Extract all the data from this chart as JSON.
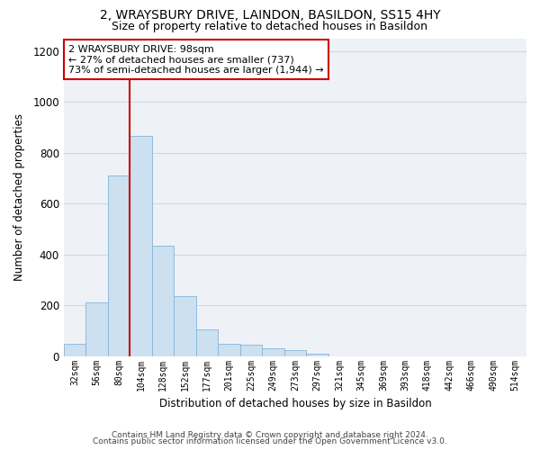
{
  "title": "2, WRAYSBURY DRIVE, LAINDON, BASILDON, SS15 4HY",
  "subtitle": "Size of property relative to detached houses in Basildon",
  "xlabel": "Distribution of detached houses by size in Basildon",
  "ylabel": "Number of detached properties",
  "bar_labels": [
    "32sqm",
    "56sqm",
    "80sqm",
    "104sqm",
    "128sqm",
    "152sqm",
    "177sqm",
    "201sqm",
    "225sqm",
    "249sqm",
    "273sqm",
    "297sqm",
    "321sqm",
    "345sqm",
    "369sqm",
    "393sqm",
    "418sqm",
    "442sqm",
    "466sqm",
    "490sqm",
    "514sqm"
  ],
  "bar_values": [
    50,
    210,
    710,
    865,
    435,
    235,
    105,
    50,
    43,
    30,
    22,
    10,
    0,
    0,
    0,
    0,
    0,
    0,
    0,
    0,
    0
  ],
  "bar_color": "#cce0f0",
  "bar_edge_color": "#85b5d9",
  "grid_color": "#d0d8e0",
  "background_color": "#eef2f7",
  "vline_x": 2.5,
  "vline_color": "#cc0000",
  "annotation_text": "2 WRAYSBURY DRIVE: 98sqm\n← 27% of detached houses are smaller (737)\n73% of semi-detached houses are larger (1,944) →",
  "annotation_box_color": "#ffffff",
  "annotation_box_edge": "#cc0000",
  "ylim": [
    0,
    1250
  ],
  "yticks": [
    0,
    200,
    400,
    600,
    800,
    1000,
    1200
  ],
  "footer1": "Contains HM Land Registry data © Crown copyright and database right 2024.",
  "footer2": "Contains public sector information licensed under the Open Government Licence v3.0."
}
